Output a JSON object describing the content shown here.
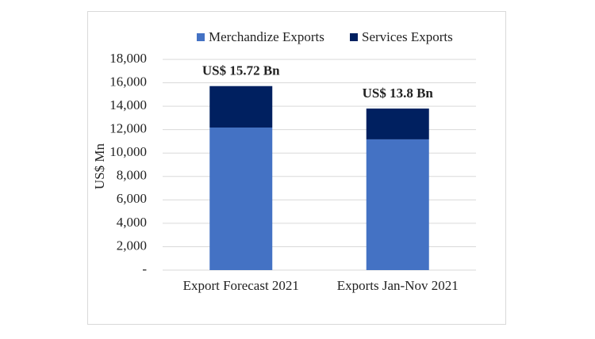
{
  "chart_data": {
    "type": "stacked-bar",
    "categories": [
      "Export Forecast 2021",
      "Exports Jan-Nov 2021"
    ],
    "series": [
      {
        "name": "Merchandize Exports",
        "color": "#4472c4",
        "values": [
          12180,
          11170
        ]
      },
      {
        "name": "Services Exports",
        "color": "#002060",
        "values": [
          3540,
          2630
        ]
      }
    ],
    "annotations": [
      "US$ 15.72 Bn",
      "US$ 13.8 Bn"
    ],
    "ylabel": "US$ Mn",
    "ylim": [
      0,
      18000
    ],
    "yticks": [
      {
        "value": 0,
        "label": "-"
      },
      {
        "value": 2000,
        "label": "2,000"
      },
      {
        "value": 4000,
        "label": "4,000"
      },
      {
        "value": 6000,
        "label": "6,000"
      },
      {
        "value": 8000,
        "label": "8,000"
      },
      {
        "value": 10000,
        "label": "10,000"
      },
      {
        "value": 12000,
        "label": "12,000"
      },
      {
        "value": 14000,
        "label": "14,000"
      },
      {
        "value": 16000,
        "label": "16,000"
      },
      {
        "value": 18000,
        "label": "18,000"
      }
    ],
    "grid": true,
    "legend": "top"
  }
}
